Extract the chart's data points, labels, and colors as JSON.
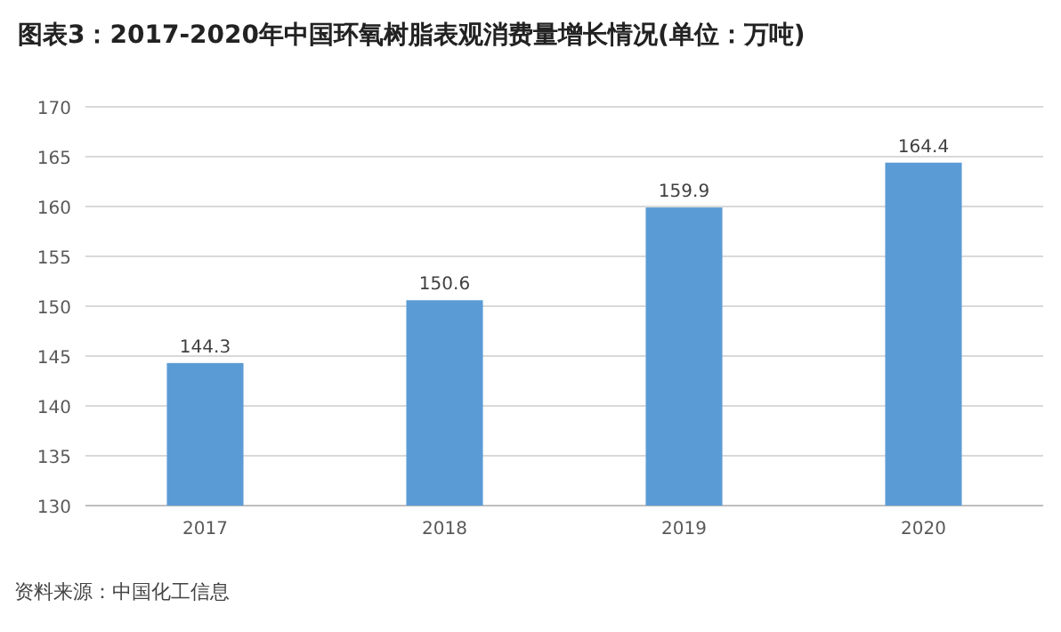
{
  "chart_data": {
    "type": "bar",
    "title": "图表3：2017-2020年中国环氧树脂表观消费量增长情况(单位：万吨)",
    "categories": [
      "2017",
      "2018",
      "2019",
      "2020"
    ],
    "values": [
      144.3,
      150.6,
      159.9,
      164.4
    ],
    "color": "#5b9bd5",
    "ylim": [
      130,
      170
    ],
    "yticks": [
      130,
      135,
      140,
      145,
      150,
      155,
      160,
      165,
      170
    ],
    "grid": "y",
    "data_labels": true,
    "annotations": [
      "资料来源：中国化工信息"
    ]
  }
}
